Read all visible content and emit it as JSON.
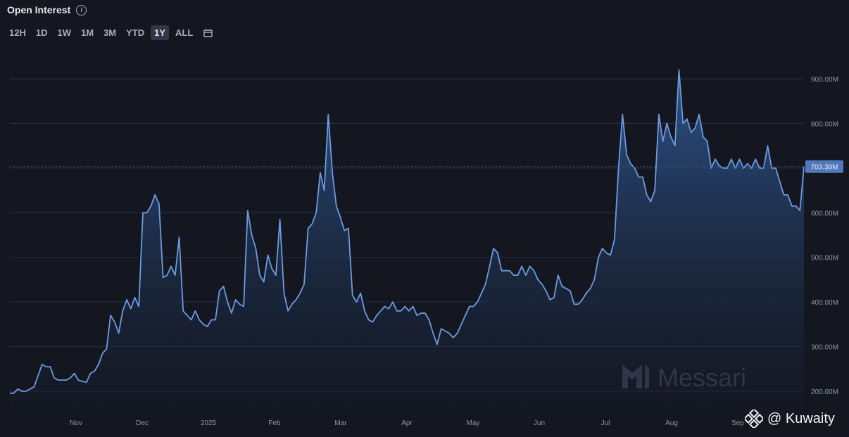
{
  "header": {
    "title": "Open Interest",
    "info_icon": "info-icon"
  },
  "range_selector": {
    "options": [
      "12H",
      "1D",
      "1W",
      "1M",
      "3M",
      "YTD",
      "1Y",
      "ALL"
    ],
    "active": "1Y",
    "calendar_icon": "calendar-icon"
  },
  "brand": {
    "logo_text": "Messari",
    "watermark_text": "@ Kuwaity"
  },
  "colors": {
    "background": "#141720",
    "line": "#6d9be0",
    "area_top": "#2f5690",
    "label_bg": "#4f79ba",
    "grid": "#23324a"
  },
  "chart_data": {
    "type": "area",
    "title": "Open Interest",
    "x_tick_labels": [
      "Nov",
      "Dec",
      "2025",
      "Feb",
      "Mar",
      "Apr",
      "May",
      "Jun",
      "Jul",
      "Aug",
      "Sep"
    ],
    "y_tick_labels": [
      "200.00M",
      "300.00M",
      "400.00M",
      "500.00M",
      "600.00M",
      "700.00M",
      "800.00M",
      "900.00M"
    ],
    "ylim": [
      200,
      900
    ],
    "y_unit": "M",
    "current_value_label": "703.39M",
    "grid": "horizontal",
    "values": [
      195,
      196,
      205,
      200,
      200,
      205,
      210,
      235,
      260,
      255,
      255,
      230,
      225,
      225,
      225,
      230,
      240,
      225,
      222,
      220,
      240,
      245,
      260,
      285,
      295,
      370,
      355,
      330,
      380,
      405,
      385,
      410,
      390,
      600,
      600,
      615,
      640,
      620,
      455,
      460,
      480,
      460,
      545,
      380,
      370,
      360,
      380,
      360,
      350,
      345,
      360,
      360,
      425,
      435,
      400,
      375,
      405,
      395,
      390,
      605,
      550,
      520,
      460,
      445,
      505,
      475,
      460,
      585,
      420,
      380,
      395,
      405,
      420,
      440,
      565,
      575,
      600,
      690,
      650,
      820,
      690,
      615,
      590,
      560,
      565,
      415,
      400,
      420,
      380,
      360,
      355,
      370,
      380,
      390,
      385,
      400,
      380,
      380,
      390,
      380,
      390,
      370,
      375,
      375,
      360,
      330,
      305,
      340,
      335,
      330,
      320,
      330,
      350,
      370,
      390,
      390,
      400,
      420,
      440,
      480,
      520,
      510,
      470,
      470,
      470,
      460,
      460,
      480,
      460,
      480,
      470,
      450,
      440,
      425,
      405,
      410,
      460,
      435,
      430,
      425,
      395,
      395,
      405,
      420,
      430,
      450,
      500,
      520,
      510,
      505,
      540,
      700,
      820,
      730,
      710,
      700,
      680,
      680,
      640,
      625,
      650,
      820,
      760,
      800,
      770,
      750,
      920,
      800,
      810,
      780,
      790,
      820,
      770,
      760,
      700,
      720,
      705,
      700,
      700,
      720,
      700,
      720,
      700,
      710,
      700,
      720,
      700,
      700,
      750,
      700,
      700,
      670,
      640,
      640,
      615,
      615,
      605,
      703.39
    ]
  }
}
